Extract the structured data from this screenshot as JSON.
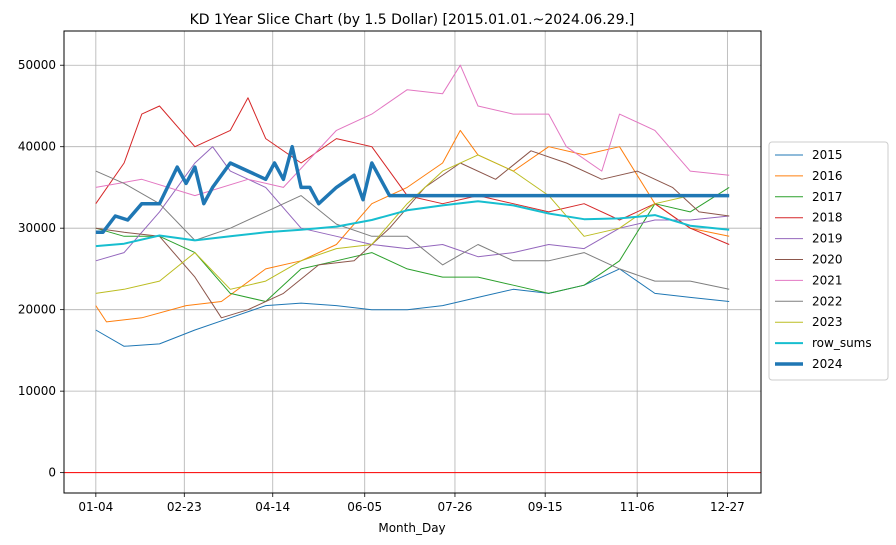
{
  "chart_data": {
    "type": "line",
    "title": "KD 1Year Slice Chart (by 1.5 Dollar) [2015.01.01.~2024.06.29.]",
    "xlabel": "Month_Day",
    "ylabel": "",
    "x_ticks": [
      {
        "day": 4,
        "label": "01-04"
      },
      {
        "day": 54,
        "label": "02-23"
      },
      {
        "day": 104,
        "label": "04-14"
      },
      {
        "day": 156,
        "label": "06-05"
      },
      {
        "day": 207,
        "label": "07-26"
      },
      {
        "day": 258,
        "label": "09-15"
      },
      {
        "day": 310,
        "label": "11-06"
      },
      {
        "day": 361,
        "label": "12-27"
      }
    ],
    "xlim": [
      -14,
      380
    ],
    "ylim": [
      -2500,
      54200
    ],
    "y_ticks": [
      0,
      10000,
      20000,
      30000,
      40000,
      50000
    ],
    "grid": true,
    "legend_position": "center-right",
    "reference_line": {
      "y": 0,
      "color": "#ff0000"
    },
    "series": [
      {
        "name": "2015",
        "color": "#1f77b4",
        "width": 1,
        "x": [
          4,
          20,
          40,
          60,
          80,
          100,
          120,
          140,
          160,
          180,
          200,
          220,
          240,
          260,
          280,
          300,
          320,
          340,
          362
        ],
        "y": [
          17500,
          15500,
          15800,
          17500,
          19000,
          20500,
          20800,
          20500,
          20000,
          20000,
          20500,
          21500,
          22500,
          22000,
          23000,
          25000,
          22000,
          21500,
          21000
        ]
      },
      {
        "name": "2016",
        "color": "#ff7f0e",
        "width": 1,
        "x": [
          4,
          10,
          30,
          55,
          75,
          100,
          120,
          140,
          160,
          180,
          200,
          210,
          220,
          240,
          260,
          280,
          300,
          320,
          340,
          362
        ],
        "y": [
          20500,
          18500,
          19000,
          20500,
          21000,
          25000,
          26000,
          28000,
          33000,
          35000,
          38000,
          42000,
          39000,
          37000,
          40000,
          39000,
          40000,
          33000,
          30000,
          29000
        ]
      },
      {
        "name": "2017",
        "color": "#2ca02c",
        "width": 1,
        "x": [
          4,
          20,
          40,
          60,
          80,
          100,
          120,
          140,
          160,
          180,
          200,
          220,
          240,
          260,
          280,
          300,
          320,
          340,
          362
        ],
        "y": [
          30000,
          29000,
          29000,
          27000,
          22000,
          21000,
          25000,
          26000,
          27000,
          25000,
          24000,
          24000,
          23000,
          22000,
          23000,
          26000,
          33000,
          32000,
          35000
        ]
      },
      {
        "name": "2018",
        "color": "#d62728",
        "width": 1,
        "x": [
          4,
          20,
          30,
          40,
          60,
          80,
          90,
          100,
          120,
          140,
          160,
          180,
          200,
          220,
          240,
          260,
          280,
          300,
          320,
          340,
          362
        ],
        "y": [
          33000,
          38000,
          44000,
          45000,
          40000,
          42000,
          46000,
          41000,
          38000,
          41000,
          40000,
          34000,
          33000,
          34000,
          33000,
          32000,
          33000,
          31000,
          33000,
          30000,
          28000
        ]
      },
      {
        "name": "2019",
        "color": "#9467bd",
        "width": 1,
        "x": [
          4,
          20,
          40,
          60,
          70,
          80,
          100,
          120,
          140,
          160,
          180,
          200,
          220,
          240,
          260,
          280,
          300,
          320,
          340,
          362
        ],
        "y": [
          26000,
          27000,
          32000,
          38000,
          40000,
          37000,
          35000,
          30000,
          29000,
          28000,
          27500,
          28000,
          26500,
          27000,
          28000,
          27500,
          30000,
          31000,
          31000,
          31500
        ]
      },
      {
        "name": "2020",
        "color": "#8c564b",
        "width": 1,
        "x": [
          4,
          20,
          40,
          60,
          75,
          90,
          110,
          130,
          150,
          170,
          190,
          210,
          230,
          250,
          270,
          290,
          310,
          330,
          345,
          362
        ],
        "y": [
          30000,
          29500,
          29000,
          24000,
          19000,
          20000,
          22000,
          25500,
          26000,
          30000,
          35000,
          38000,
          36000,
          39500,
          38000,
          36000,
          37000,
          35000,
          32000,
          31500
        ]
      },
      {
        "name": "2021",
        "color": "#e377c2",
        "width": 1,
        "x": [
          4,
          30,
          60,
          90,
          110,
          140,
          160,
          180,
          200,
          210,
          220,
          240,
          260,
          270,
          290,
          300,
          320,
          340,
          362
        ],
        "y": [
          35000,
          36000,
          34000,
          36000,
          35000,
          42000,
          44000,
          47000,
          46500,
          50000,
          45000,
          44000,
          44000,
          40000,
          37000,
          44000,
          42000,
          37000,
          36500
        ]
      },
      {
        "name": "2022",
        "color": "#7f7f7f",
        "width": 1,
        "x": [
          4,
          20,
          40,
          60,
          80,
          100,
          120,
          140,
          160,
          180,
          200,
          220,
          240,
          260,
          280,
          300,
          320,
          340,
          362
        ],
        "y": [
          37000,
          35500,
          33000,
          28500,
          30000,
          32000,
          34000,
          30500,
          29000,
          29000,
          25500,
          28000,
          26000,
          26000,
          27000,
          25000,
          23500,
          23500,
          22500
        ]
      },
      {
        "name": "2023",
        "color": "#bcbd22",
        "width": 1,
        "x": [
          4,
          20,
          40,
          60,
          80,
          100,
          120,
          140,
          160,
          180,
          200,
          220,
          240,
          260,
          280,
          300,
          320,
          340,
          362
        ],
        "y": [
          22000,
          22500,
          23500,
          27000,
          22500,
          23500,
          26000,
          27500,
          28000,
          33000,
          37000,
          39000,
          37000,
          34000,
          29000,
          30000,
          33000,
          34000,
          34000
        ]
      },
      {
        "name": "row_sums",
        "color": "#17becf",
        "width": 2,
        "x": [
          4,
          20,
          40,
          60,
          80,
          100,
          120,
          140,
          160,
          180,
          200,
          220,
          240,
          260,
          280,
          300,
          320,
          340,
          362
        ],
        "y": [
          27800,
          28100,
          29100,
          28500,
          29000,
          29500,
          29800,
          30200,
          31000,
          32200,
          32800,
          33300,
          32800,
          31800,
          31100,
          31200,
          31600,
          30300,
          29800
        ]
      },
      {
        "name": "2024",
        "color": "#1f77b4",
        "width": 3.5,
        "x": [
          4,
          8,
          15,
          22,
          30,
          40,
          50,
          55,
          60,
          65,
          70,
          80,
          90,
          100,
          105,
          110,
          115,
          120,
          125,
          130,
          140,
          150,
          155,
          160,
          165,
          170,
          175,
          180,
          362
        ],
        "y": [
          29500,
          29500,
          31500,
          31000,
          33000,
          33000,
          37500,
          35500,
          37500,
          33000,
          35000,
          38000,
          37000,
          36000,
          38000,
          36000,
          40000,
          35000,
          35000,
          33000,
          35000,
          36500,
          33500,
          38000,
          36000,
          34000,
          34000,
          34000,
          34000
        ]
      }
    ]
  }
}
